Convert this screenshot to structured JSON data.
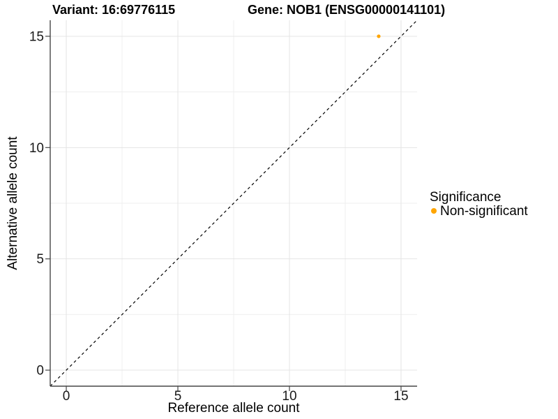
{
  "header": {
    "variant_title": "Variant: 16:69776115",
    "gene_title": "Gene: NOB1 (ENSG00000141101)"
  },
  "legend": {
    "title": "Significance",
    "items": [
      {
        "label": "Non-significant",
        "color": "#FFA500"
      }
    ],
    "position": "right"
  },
  "chart_data": {
    "type": "scatter",
    "title": "Variant: 16:69776115    Gene: NOB1 (ENSG00000141101)",
    "xlabel": "Reference allele count",
    "ylabel": "Alternative allele count",
    "xlim": [
      -0.72,
      15.72
    ],
    "ylim": [
      -0.72,
      15.72
    ],
    "x_ticks": [
      0,
      5,
      10,
      15
    ],
    "y_ticks": [
      0,
      5,
      10,
      15
    ],
    "x_minor_ticks": [
      2.5,
      7.5,
      12.5
    ],
    "y_minor_ticks": [
      2.5,
      7.5,
      12.5
    ],
    "grid": true,
    "legend_position": "right",
    "series": [
      {
        "name": "Non-significant",
        "color": "#FFA500",
        "points": [
          [
            14,
            15
          ]
        ]
      }
    ],
    "reference_line": {
      "type": "identity",
      "slope": 1,
      "intercept": 0,
      "style": "dashed",
      "color": "#000000"
    },
    "colors": {
      "grid_major": "#e4e4e4",
      "grid_minor": "#efefef",
      "axis_line": "#464646",
      "tick_label": "#1a1a1a"
    }
  }
}
